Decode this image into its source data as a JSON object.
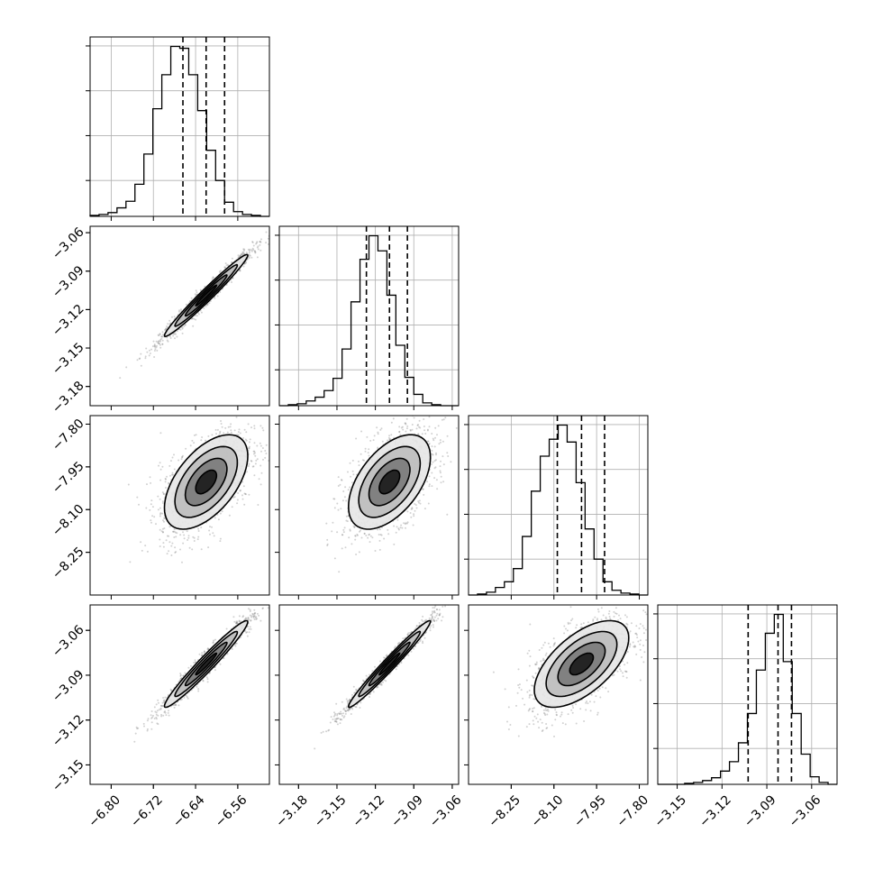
{
  "chart_data": {
    "type": "corner",
    "parameters": [
      {
        "range": [
          -6.84,
          -6.5
        ],
        "ticks": [
          "−6.80",
          "−6.72",
          "−6.64",
          "−6.56"
        ],
        "tick_values": [
          -6.8,
          -6.72,
          -6.64,
          -6.56
        ],
        "quantiles": [
          -6.664,
          -6.62,
          -6.585
        ]
      },
      {
        "range": [
          -3.195,
          -3.055
        ],
        "ticks": [
          "−3.18",
          "−3.15",
          "−3.12",
          "−3.09",
          "−3.06"
        ],
        "tick_values": [
          -3.18,
          -3.15,
          -3.12,
          -3.09,
          -3.06
        ],
        "quantiles": [
          -3.127,
          -3.109,
          -3.095
        ]
      },
      {
        "range": [
          -8.4,
          -7.77
        ],
        "ticks": [
          "−8.25",
          "−8.10",
          "−7.95",
          "−7.80"
        ],
        "tick_values": [
          -8.25,
          -8.1,
          -7.95,
          -7.8
        ],
        "quantiles": [
          -8.088,
          -8.003,
          -7.922
        ]
      },
      {
        "range": [
          -3.163,
          -3.043
        ],
        "ticks": [
          "−3.15",
          "−3.12",
          "−3.09",
          "−3.06"
        ],
        "tick_values": [
          -3.15,
          -3.12,
          -3.09,
          -3.06
        ],
        "quantiles": [
          -3.1025,
          -3.0825,
          -3.0735
        ]
      }
    ],
    "histograms": [
      [
        1,
        2,
        4,
        9,
        16,
        34,
        66,
        114,
        150,
        180,
        178,
        150,
        112,
        70,
        38,
        15,
        5,
        2,
        1,
        0
      ],
      [
        0,
        1,
        2,
        5,
        9,
        16,
        29,
        60,
        110,
        155,
        180,
        164,
        117,
        64,
        30,
        12,
        3,
        1,
        0,
        0
      ],
      [
        0,
        1,
        3,
        8,
        14,
        28,
        62,
        110,
        147,
        165,
        180,
        162,
        119,
        70,
        38,
        14,
        5,
        2,
        1,
        0
      ],
      [
        0,
        0,
        0,
        1,
        2,
        4,
        7,
        14,
        24,
        44,
        75,
        121,
        160,
        180,
        130,
        75,
        32,
        8,
        2,
        0
      ]
    ],
    "correlations": [
      [
        1,
        0.98,
        0.55,
        0.97
      ],
      [
        0.98,
        1,
        0.52,
        0.98
      ],
      [
        0.55,
        0.52,
        1,
        0.6
      ],
      [
        0.97,
        0.98,
        0.6,
        1
      ]
    ],
    "contour_levels_sigma": [
      0.5,
      1.0,
      1.5,
      2.0
    ],
    "grid": true,
    "colors": {
      "line": "#000000",
      "grid": "#b0b0b0",
      "scatter": "#7f7f7f",
      "density_low": "#d9d9d9",
      "density_high": "#000000"
    }
  }
}
